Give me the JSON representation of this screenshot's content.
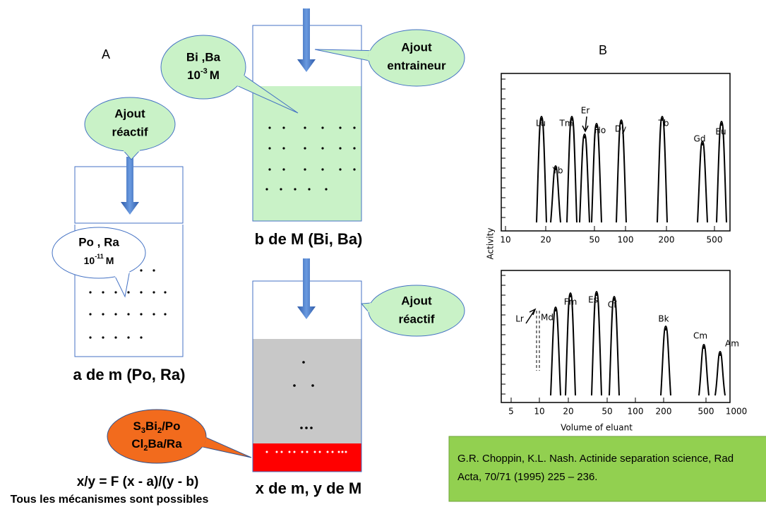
{
  "panel_a": {
    "label": "A",
    "callout_reagent": [
      "Ajout",
      "réactif"
    ],
    "callout_species": {
      "line1": "Po , Ra",
      "conc_base": "10",
      "conc_exp": "-11",
      "conc_unit": "M"
    },
    "caption": "a de m (Po, Ra)"
  },
  "beaker_b": {
    "callout_species": {
      "line1": "Bi ,Ba",
      "conc_base": "10",
      "conc_exp": "-3",
      "conc_unit": "M"
    },
    "callout_carrier": [
      "Ajout",
      "entraineur"
    ],
    "caption": "b de M (Bi, Ba)"
  },
  "beaker_x": {
    "callout_reagent": [
      "Ajout",
      "réactif"
    ],
    "precipitate": [
      [
        "S",
        "3",
        "Bi",
        "2",
        "/Po"
      ],
      [
        "Cl",
        "2",
        "Ba/Ra"
      ]
    ],
    "caption": "x de m, y de M"
  },
  "formula": "x/y = F (x - a)/(y - b)",
  "conclusion": "Tous les mécanismes sont possibles",
  "panel_b": {
    "label": "B",
    "y_axis_label": "Activity",
    "x_axis_label": "Volume of eluant",
    "top_plot": {
      "peaks": [
        "Lu",
        "Yb",
        "Tm",
        "Er",
        "Ho",
        "Dy",
        "Tb",
        "Gd",
        "Eu"
      ],
      "x_ticks": [
        "10",
        "20",
        "50",
        "100",
        "200",
        "500"
      ]
    },
    "bottom_plot": {
      "peaks": [
        "Lr",
        "Md",
        "Fm",
        "Es",
        "Cf",
        "Bk",
        "Cm",
        "Am"
      ],
      "x_ticks": [
        "5",
        "10",
        "20",
        "50",
        "100",
        "200",
        "500",
        "1000"
      ]
    }
  },
  "citation": [
    "G.R. Choppin, K.L. Nash. Actinide separation science, Rad",
    "Acta, 70/71 (1995) 225 – 236."
  ]
}
